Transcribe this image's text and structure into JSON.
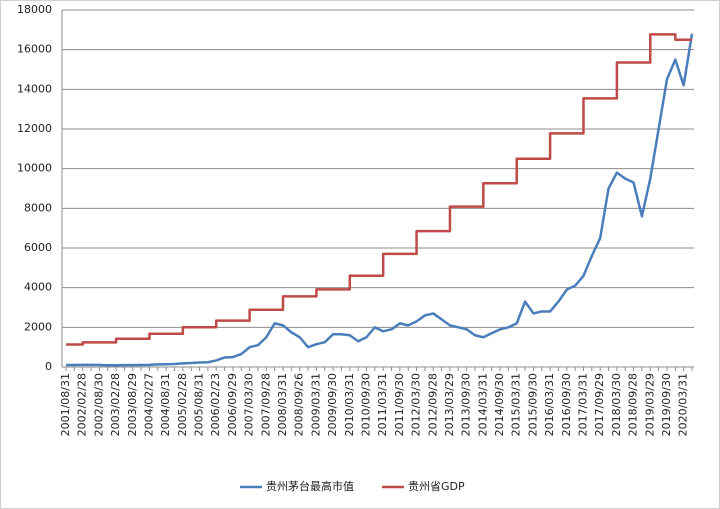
{
  "chart_data": {
    "type": "line",
    "categories": [
      "2001/08/31",
      null,
      "2002/02/28",
      null,
      "2002/08/30",
      null,
      "2003/02/28",
      null,
      "2003/08/29",
      null,
      "2004/02/27",
      null,
      "2004/08/31",
      null,
      "2005/02/28",
      null,
      "2005/08/31",
      null,
      "2006/02/23",
      null,
      "2006/09/29",
      null,
      "2007/03/30",
      null,
      "2007/09/28",
      null,
      "2008/03/31",
      null,
      "2008/09/26",
      null,
      "2009/03/31",
      null,
      "2009/09/30",
      null,
      "2010/03/31",
      null,
      "2010/09/30",
      null,
      "2011/03/31",
      null,
      "2011/09/30",
      null,
      "2012/03/30",
      null,
      "2012/09/28",
      null,
      "2013/03/29",
      null,
      "2013/09/30",
      null,
      "2014/03/31",
      null,
      "2014/09/30",
      null,
      "2015/03/31",
      null,
      "2015/09/30",
      null,
      "2016/03/31",
      null,
      "2016/09/30",
      null,
      "2017/03/31",
      null,
      "2017/09/29",
      null,
      "2018/03/30",
      null,
      "2018/09/28",
      null,
      "2019/03/29",
      null,
      "2019/09/30",
      null,
      "2020/03/31",
      null
    ],
    "series": [
      {
        "name": "贵州茅台最高市值",
        "color": "#4a7ebb",
        "step": false,
        "values": [
          100,
          100,
          110,
          110,
          100,
          90,
          90,
          95,
          95,
          100,
          110,
          130,
          140,
          150,
          180,
          200,
          230,
          240,
          330,
          480,
          500,
          650,
          1000,
          1100,
          1500,
          2200,
          2100,
          1750,
          1500,
          1000,
          1150,
          1250,
          1650,
          1650,
          1600,
          1300,
          1500,
          2000,
          1800,
          1900,
          2200,
          2100,
          2300,
          2600,
          2700,
          2400,
          2100,
          2000,
          1900,
          1600,
          1500,
          1700,
          1900,
          2000,
          2200,
          3300,
          2700,
          2800,
          2800,
          3300,
          3900,
          4100,
          4600,
          5600,
          6500,
          9000,
          9800,
          9500,
          9300,
          7600,
          9500,
          12000,
          14500,
          15500,
          14200,
          16800
        ]
      },
      {
        "name": "贵州省GDP",
        "color": "#be4b48",
        "step": true,
        "values": [
          1133,
          1133,
          1243,
          1243,
          1243,
          1243,
          1427,
          1427,
          1427,
          1427,
          1678,
          1678,
          1678,
          1678,
          2005,
          2005,
          2005,
          2005,
          2339,
          2339,
          2339,
          2339,
          2884,
          2884,
          2884,
          2884,
          3562,
          3562,
          3562,
          3562,
          3913,
          3913,
          3913,
          3913,
          4602,
          4602,
          4602,
          4602,
          5702,
          5702,
          5702,
          5702,
          6852,
          6852,
          6852,
          6852,
          8087,
          8087,
          8087,
          8087,
          9266,
          9266,
          9266,
          9266,
          10503,
          10503,
          10503,
          10503,
          11777,
          11777,
          11777,
          11777,
          13541,
          13541,
          13541,
          13541,
          15353,
          15353,
          15353,
          15353,
          16769,
          16769,
          16769,
          16500,
          16500,
          16500
        ]
      }
    ],
    "ylim": [
      0,
      18000
    ],
    "yticks": [
      0,
      2000,
      4000,
      6000,
      8000,
      10000,
      12000,
      14000,
      16000,
      18000
    ],
    "grid": true,
    "legend": "bottom"
  }
}
